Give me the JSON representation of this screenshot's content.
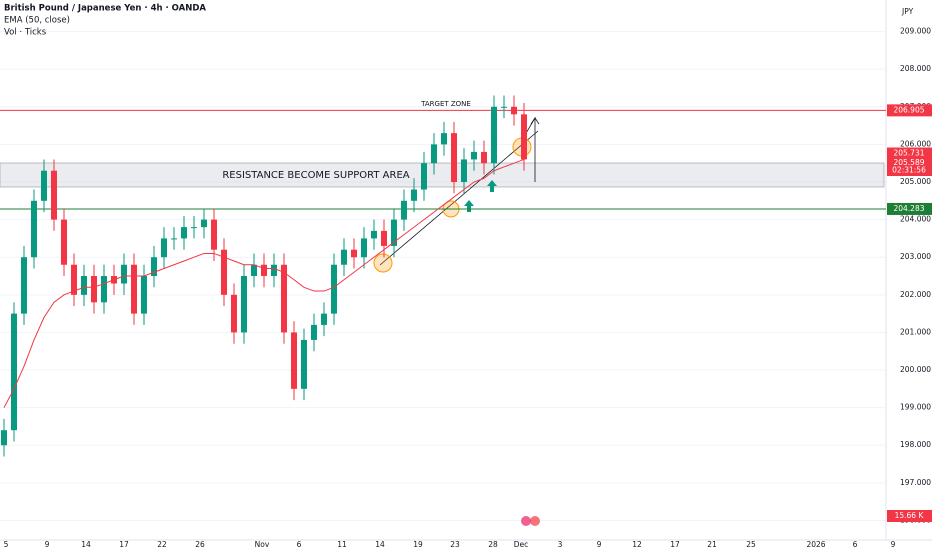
{
  "header": {
    "title": "British Pound / Japanese Yen · 4h · OANDA",
    "indicator": "EMA (50, close)",
    "volume": "Vol · Ticks",
    "currency": "JPY"
  },
  "annotations": {
    "target": "TARGET ZONE",
    "zone": "RESISTANCE BECOME SUPPORT AREA"
  },
  "chart_data": {
    "type": "candlestick",
    "open": [
      198.0,
      198.4,
      201.5,
      203.0,
      204.5,
      205.3,
      204.0,
      202.8,
      202.0,
      202.5,
      201.8,
      202.5,
      202.3,
      202.8,
      201.5,
      202.5,
      203.0,
      203.5,
      203.5,
      203.8,
      203.8,
      204.0,
      203.2,
      202.0,
      201.0,
      202.5,
      202.8,
      202.5,
      202.8,
      201.0,
      199.5,
      200.8,
      201.2,
      201.5,
      202.8,
      203.2,
      203.0,
      203.5,
      203.7,
      203.3,
      204.0,
      204.5,
      204.8,
      205.5,
      206.0,
      206.3,
      205.0,
      205.6,
      205.8,
      205.5,
      207.0,
      207.0,
      206.8
    ],
    "high": [
      198.7,
      201.8,
      203.3,
      204.8,
      205.6,
      205.6,
      204.3,
      203.1,
      202.8,
      202.8,
      202.8,
      202.8,
      203.1,
      203.1,
      202.8,
      203.3,
      203.8,
      203.8,
      204.1,
      204.1,
      204.3,
      204.3,
      203.5,
      202.3,
      202.8,
      203.1,
      203.1,
      203.1,
      203.1,
      201.3,
      201.1,
      201.5,
      201.8,
      203.1,
      203.5,
      203.5,
      203.8,
      204.0,
      204.0,
      204.3,
      204.8,
      205.1,
      205.8,
      206.3,
      206.6,
      206.6,
      205.9,
      206.1,
      206.1,
      207.3,
      207.3,
      207.3,
      207.1
    ],
    "low": [
      197.7,
      198.1,
      201.2,
      202.7,
      204.2,
      203.7,
      202.5,
      201.7,
      201.7,
      201.5,
      201.5,
      202.0,
      202.0,
      201.2,
      201.2,
      202.2,
      202.7,
      203.2,
      203.2,
      203.5,
      203.5,
      202.9,
      201.7,
      200.7,
      200.7,
      202.2,
      202.2,
      202.2,
      200.7,
      199.2,
      199.2,
      200.5,
      200.9,
      201.2,
      202.5,
      202.7,
      202.7,
      203.2,
      203.0,
      203.0,
      203.7,
      204.2,
      204.5,
      205.2,
      205.7,
      204.7,
      204.7,
      205.3,
      205.2,
      205.2,
      206.7,
      206.5,
      205.3
    ],
    "close": [
      198.4,
      201.5,
      203.0,
      204.5,
      205.3,
      204.0,
      202.8,
      202.0,
      202.5,
      201.8,
      202.5,
      202.3,
      202.8,
      201.5,
      202.5,
      203.0,
      203.5,
      203.5,
      203.8,
      203.8,
      204.0,
      203.2,
      202.0,
      201.0,
      202.5,
      202.8,
      202.5,
      202.8,
      201.0,
      199.5,
      200.8,
      201.2,
      201.5,
      202.8,
      203.2,
      203.0,
      203.5,
      203.7,
      203.3,
      204.0,
      204.5,
      204.8,
      205.5,
      206.0,
      206.3,
      205.0,
      205.6,
      205.8,
      205.5,
      207.0,
      207.0,
      206.8,
      205.6
    ],
    "series": [
      {
        "name": "EMA (50, close)",
        "color": "#f23645",
        "values": [
          199.0,
          199.5,
          200.1,
          200.8,
          201.4,
          201.8,
          202.0,
          202.1,
          202.2,
          202.2,
          202.3,
          202.4,
          202.5,
          202.5,
          202.5,
          202.6,
          202.7,
          202.8,
          202.9,
          203.0,
          203.1,
          203.1,
          203.0,
          202.9,
          202.8,
          202.8,
          202.7,
          202.7,
          202.6,
          202.4,
          202.2,
          202.1,
          202.1,
          202.2,
          202.4,
          202.6,
          202.8,
          203.0,
          203.2,
          203.4,
          203.6,
          203.8,
          204.0,
          204.2,
          204.4,
          204.6,
          204.8,
          205.0,
          205.1,
          205.3,
          205.4,
          205.5,
          205.6
        ]
      }
    ],
    "up_color": "#089981",
    "down_color": "#f23645",
    "date_labels": [
      "5",
      "9",
      "14",
      "17",
      "22",
      "26",
      "Nov",
      "6",
      "11",
      "14",
      "19",
      "23",
      "28",
      "Dec",
      "3",
      "9",
      "12",
      "17",
      "21",
      "25",
      "2026",
      "6",
      "9"
    ],
    "ylim": [
      195.48,
      209.84
    ],
    "yticks": [
      {
        "value": 196,
        "label": "196.000"
      },
      {
        "value": 197,
        "label": "197.000"
      },
      {
        "value": 198,
        "label": "198.000"
      },
      {
        "value": 199,
        "label": "199.000"
      },
      {
        "value": 200,
        "label": "200.000"
      },
      {
        "value": 201,
        "label": "201.000"
      },
      {
        "value": 202,
        "label": "202.000"
      },
      {
        "value": 203,
        "label": "203.000"
      },
      {
        "value": 204,
        "label": "204.000"
      },
      {
        "value": 205,
        "label": "205.000"
      },
      {
        "value": 206,
        "label": "206.000"
      },
      {
        "value": 207,
        "label": "207.000"
      },
      {
        "value": 208,
        "label": "208.000"
      },
      {
        "value": 209,
        "label": "209.000"
      }
    ],
    "levels": [
      {
        "value": 206.905,
        "label": "206.905",
        "color": "#f23645"
      },
      {
        "value": 204.283,
        "label": "204.283",
        "color": "#1e7e34"
      }
    ],
    "price_tags": [
      {
        "value": 205.731,
        "label": "205.731",
        "color": "#f23645"
      },
      {
        "value": 205.589,
        "label": "205.589",
        "color": "#f23645"
      }
    ],
    "countdown": "02:31:56",
    "volume_tag": "15.66 K"
  }
}
